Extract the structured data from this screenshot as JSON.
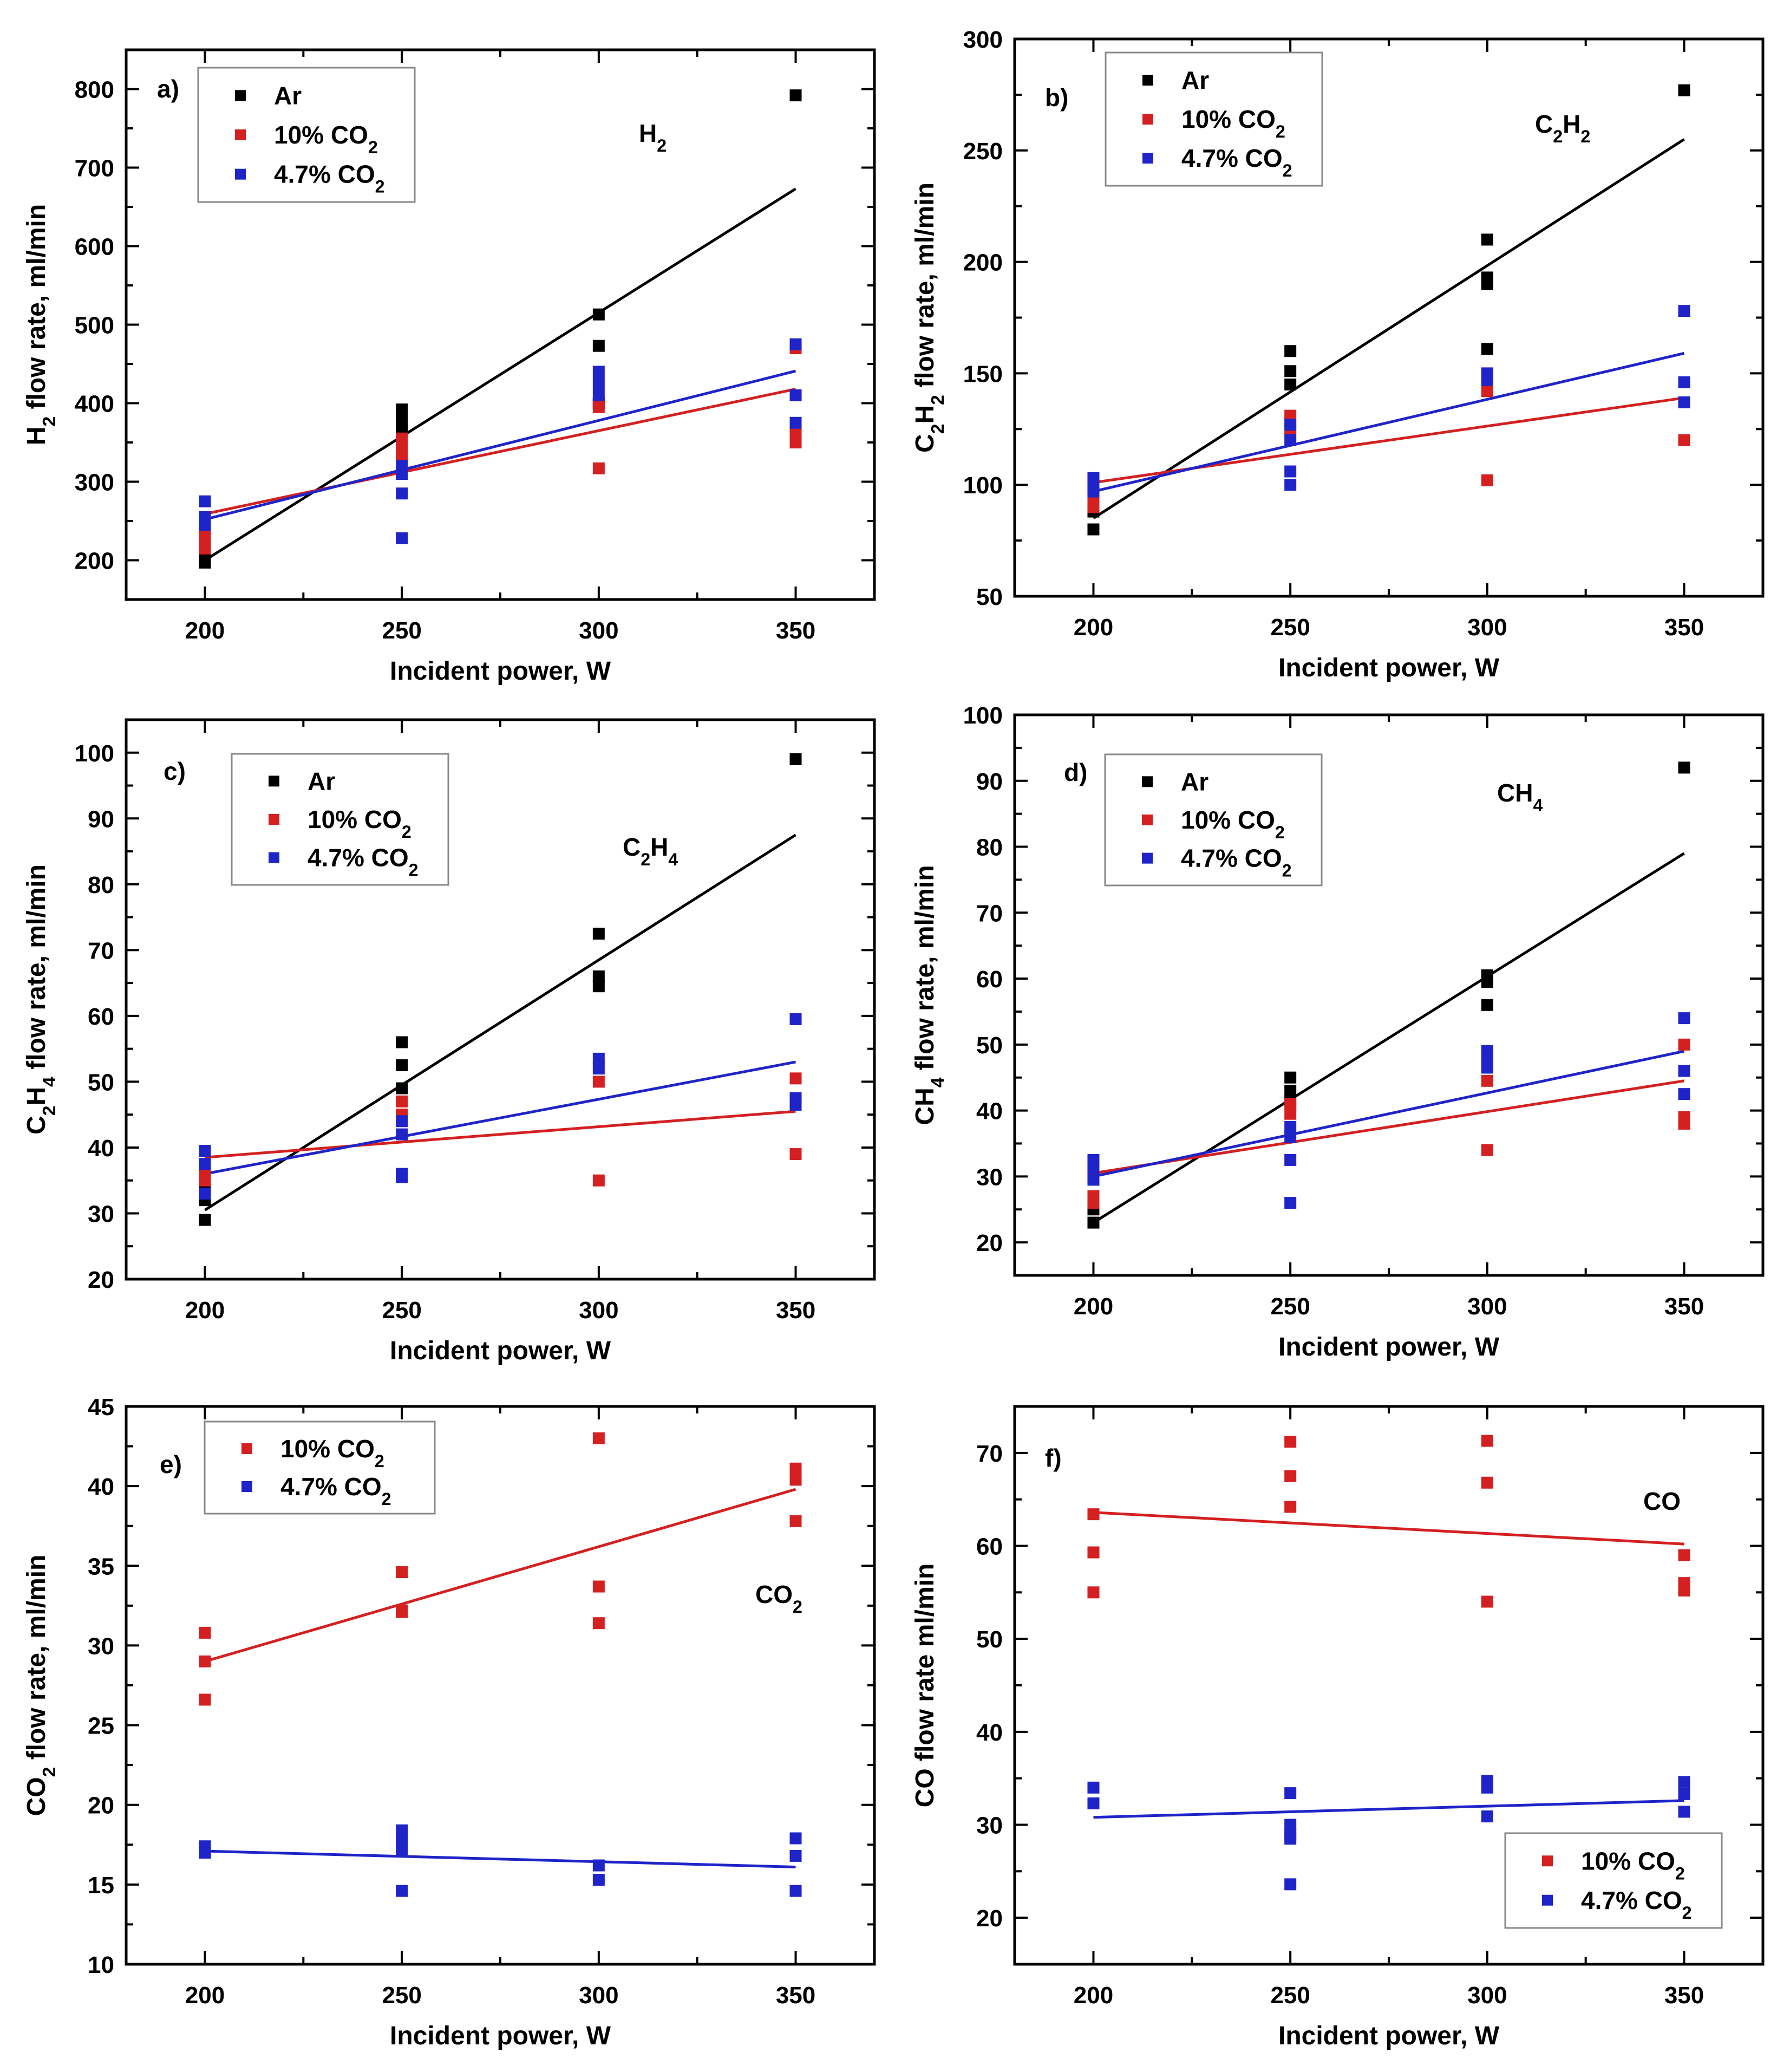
{
  "figure": {
    "colors": {
      "Ar": "#000000",
      "10% CO2": "#d42020",
      "4.7% CO2": "#1f24c8"
    },
    "series_labels": {
      "Ar": [
        "Ar"
      ],
      "10% CO2": [
        "10% CO",
        "2"
      ],
      "4.7% CO2": [
        "4.7% CO",
        "2"
      ]
    }
  },
  "chart_data": [
    {
      "type": "scatter",
      "panel": "a)",
      "species_label": [
        "H",
        "2"
      ],
      "xlabel": "Incident power, W",
      "ylabel": [
        "H",
        "2",
        " flow rate, ml/min"
      ],
      "xlim": [
        180,
        370
      ],
      "ylim": [
        150,
        850
      ],
      "xticks": [
        200,
        250,
        300,
        350
      ],
      "yticks": [
        200,
        300,
        400,
        500,
        600,
        700,
        800
      ],
      "legend": "top-left",
      "series": [
        {
          "name": "Ar",
          "points": [
            [
              200,
              197
            ],
            [
              200,
              200
            ],
            [
              250,
              392
            ],
            [
              250,
              380
            ],
            [
              250,
              370
            ],
            [
              250,
              360
            ],
            [
              300,
              513
            ],
            [
              300,
              473
            ],
            [
              300,
              400
            ],
            [
              350,
              792
            ]
          ],
          "fit": [
            [
              200,
              200
            ],
            [
              350,
              673
            ]
          ]
        },
        {
          "name": "10% CO2",
          "points": [
            [
              200,
              215
            ],
            [
              200,
              225
            ],
            [
              200,
              232
            ],
            [
              250,
              355
            ],
            [
              250,
              340
            ],
            [
              250,
              330
            ],
            [
              300,
              400
            ],
            [
              300,
              395
            ],
            [
              300,
              317
            ],
            [
              350,
              470
            ],
            [
              350,
              360
            ],
            [
              350,
              350
            ]
          ],
          "fit": [
            [
              200,
              259
            ],
            [
              350,
              418
            ]
          ]
        },
        {
          "name": "4.7% CO2",
          "points": [
            [
              200,
              275
            ],
            [
              200,
              255
            ],
            [
              200,
              245
            ],
            [
              250,
              320
            ],
            [
              250,
              310
            ],
            [
              250,
              285
            ],
            [
              250,
              228
            ],
            [
              300,
              440
            ],
            [
              300,
              425
            ],
            [
              300,
              410
            ],
            [
              350,
              475
            ],
            [
              350,
              410
            ],
            [
              350,
              375
            ]
          ],
          "fit": [
            [
              200,
              252
            ],
            [
              350,
              441
            ]
          ]
        }
      ]
    },
    {
      "type": "scatter",
      "panel": "b)",
      "species_label": [
        "C",
        "2",
        "H",
        "2"
      ],
      "xlabel": "Incident power, W",
      "ylabel": [
        "C",
        "2",
        "H",
        "2",
        " flow rate, ml/min"
      ],
      "xlim": [
        180,
        370
      ],
      "ylim": [
        50,
        300
      ],
      "xticks": [
        200,
        250,
        300,
        350
      ],
      "yticks": [
        50,
        100,
        150,
        200,
        250,
        300
      ],
      "legend": "top-left",
      "series": [
        {
          "name": "Ar",
          "points": [
            [
              200,
              80
            ],
            [
              200,
              88
            ],
            [
              250,
              160
            ],
            [
              250,
              151
            ],
            [
              250,
              145
            ],
            [
              300,
              210
            ],
            [
              300,
              193
            ],
            [
              300,
              190
            ],
            [
              300,
              161
            ],
            [
              350,
              277
            ]
          ],
          "fit": [
            [
              200,
              85
            ],
            [
              350,
              255
            ]
          ]
        },
        {
          "name": "10% CO2",
          "points": [
            [
              200,
              90
            ],
            [
              200,
              95
            ],
            [
              250,
              131
            ],
            [
              250,
              125
            ],
            [
              300,
              142
            ],
            [
              300,
              102
            ],
            [
              350,
              120
            ]
          ],
          "fit": [
            [
              200,
              101
            ],
            [
              350,
              139
            ]
          ]
        },
        {
          "name": "4.7% CO2",
          "points": [
            [
              200,
              103
            ],
            [
              200,
              100
            ],
            [
              200,
              97
            ],
            [
              250,
              127
            ],
            [
              250,
              120
            ],
            [
              250,
              106
            ],
            [
              250,
              100
            ],
            [
              300,
              150
            ],
            [
              300,
              147
            ],
            [
              350,
              178
            ],
            [
              350,
              146
            ],
            [
              350,
              137
            ]
          ],
          "fit": [
            [
              200,
              97
            ],
            [
              350,
              159
            ]
          ]
        }
      ]
    },
    {
      "type": "scatter",
      "panel": "c)",
      "species_label": [
        "C",
        "2",
        "H",
        "4"
      ],
      "xlabel": "Incident power, W",
      "ylabel": [
        "C",
        "2",
        "H",
        "4",
        " flow rate, ml/min"
      ],
      "xlim": [
        180,
        370
      ],
      "ylim": [
        20,
        105
      ],
      "xticks": [
        200,
        250,
        300,
        350
      ],
      "yticks": [
        20,
        30,
        40,
        50,
        60,
        70,
        80,
        90,
        100
      ],
      "legend": "top-left",
      "series": [
        {
          "name": "Ar",
          "points": [
            [
              200,
              29
            ],
            [
              200,
              32
            ],
            [
              200,
              34
            ],
            [
              250,
              56
            ],
            [
              250,
              52.5
            ],
            [
              250,
              49
            ],
            [
              300,
              72.5
            ],
            [
              300,
              66
            ],
            [
              300,
              64.5
            ],
            [
              350,
              99
            ]
          ],
          "fit": [
            [
              200,
              30.5
            ],
            [
              350,
              87.5
            ]
          ]
        },
        {
          "name": "10% CO2",
          "points": [
            [
              200,
              35
            ],
            [
              200,
              36.5
            ],
            [
              250,
              47
            ],
            [
              250,
              45
            ],
            [
              300,
              50
            ],
            [
              300,
              35
            ],
            [
              350,
              50.5
            ],
            [
              350,
              39
            ]
          ],
          "fit": [
            [
              200,
              38.5
            ],
            [
              350,
              45.5
            ]
          ]
        },
        {
          "name": "4.7% CO2",
          "points": [
            [
              200,
              39.5
            ],
            [
              200,
              37.5
            ],
            [
              200,
              33
            ],
            [
              250,
              44
            ],
            [
              250,
              42
            ],
            [
              250,
              36
            ],
            [
              250,
              35.5
            ],
            [
              300,
              53.5
            ],
            [
              300,
              52
            ],
            [
              350,
              59.5
            ],
            [
              350,
              47.5
            ],
            [
              350,
              46.5
            ]
          ],
          "fit": [
            [
              200,
              36
            ],
            [
              350,
              53
            ]
          ]
        }
      ]
    },
    {
      "type": "scatter",
      "panel": "d)",
      "species_label": [
        "CH",
        "4"
      ],
      "xlabel": "Incident power, W",
      "ylabel": [
        "CH",
        "4",
        " flow rate, ml/min"
      ],
      "xlim": [
        180,
        370
      ],
      "ylim": [
        15,
        100
      ],
      "xticks": [
        200,
        250,
        300,
        350
      ],
      "yticks": [
        20,
        30,
        40,
        50,
        60,
        70,
        80,
        90,
        100
      ],
      "legend": "top-left",
      "series": [
        {
          "name": "Ar",
          "points": [
            [
              200,
              23
            ],
            [
              200,
              25
            ],
            [
              250,
              45
            ],
            [
              250,
              43
            ],
            [
              250,
              41.5
            ],
            [
              300,
              60.5
            ],
            [
              300,
              59.5
            ],
            [
              300,
              56
            ],
            [
              350,
              92
            ]
          ],
          "fit": [
            [
              200,
              23
            ],
            [
              350,
              79
            ]
          ]
        },
        {
          "name": "10% CO2",
          "points": [
            [
              200,
              27
            ],
            [
              200,
              26
            ],
            [
              250,
              41
            ],
            [
              250,
              39.5
            ],
            [
              300,
              44.5
            ],
            [
              300,
              34
            ],
            [
              350,
              50
            ],
            [
              350,
              39
            ],
            [
              350,
              38
            ]
          ],
          "fit": [
            [
              200,
              30.5
            ],
            [
              350,
              44.5
            ]
          ]
        },
        {
          "name": "4.7% CO2",
          "points": [
            [
              200,
              32.5
            ],
            [
              200,
              31
            ],
            [
              200,
              29.5
            ],
            [
              250,
              37.5
            ],
            [
              250,
              36
            ],
            [
              250,
              32.5
            ],
            [
              250,
              26
            ],
            [
              300,
              49
            ],
            [
              300,
              47.5
            ],
            [
              300,
              46.5
            ],
            [
              350,
              54
            ],
            [
              350,
              46
            ],
            [
              350,
              42.5
            ]
          ],
          "fit": [
            [
              200,
              30
            ],
            [
              350,
              49
            ]
          ]
        }
      ]
    },
    {
      "type": "scatter",
      "panel": "e)",
      "species_label": [
        "CO",
        "2"
      ],
      "xlabel": "Incident power, W",
      "ylabel": [
        "CO",
        "2",
        " flow rate, ml/min"
      ],
      "xlim": [
        180,
        370
      ],
      "ylim": [
        10,
        45
      ],
      "xticks": [
        200,
        250,
        300,
        350
      ],
      "yticks": [
        10,
        15,
        20,
        25,
        30,
        35,
        40,
        45
      ],
      "legend": "top-left",
      "series": [
        {
          "name": "10% CO2",
          "points": [
            [
              200,
              30.8
            ],
            [
              200,
              29
            ],
            [
              200,
              26.6
            ],
            [
              250,
              34.6
            ],
            [
              250,
              32.2
            ],
            [
              250,
              32.1
            ],
            [
              300,
              43
            ],
            [
              300,
              33.7
            ],
            [
              300,
              31.4
            ],
            [
              350,
              41.1
            ],
            [
              350,
              40.4
            ],
            [
              350,
              37.8
            ]
          ],
          "fit": [
            [
              200,
              29
            ],
            [
              350,
              39.8
            ]
          ]
        },
        {
          "name": "4.7% CO2",
          "points": [
            [
              200,
              17.4
            ],
            [
              200,
              17
            ],
            [
              250,
              18.4
            ],
            [
              250,
              17.8
            ],
            [
              250,
              17.2
            ],
            [
              250,
              14.6
            ],
            [
              300,
              16.2
            ],
            [
              300,
              15.3
            ],
            [
              350,
              17.9
            ],
            [
              350,
              16.8
            ],
            [
              350,
              14.6
            ]
          ],
          "fit": [
            [
              200,
              17.1
            ],
            [
              350,
              16.1
            ]
          ]
        }
      ]
    },
    {
      "type": "scatter",
      "panel": "f)",
      "species_label": [
        "CO"
      ],
      "xlabel": "Incident power, W",
      "ylabel": [
        "CO flow rate ml/min"
      ],
      "xlim": [
        180,
        370
      ],
      "ylim": [
        15,
        75
      ],
      "xticks": [
        200,
        250,
        300,
        350
      ],
      "yticks": [
        20,
        30,
        40,
        50,
        60,
        70
      ],
      "legend": "bottom-right",
      "series": [
        {
          "name": "10% CO2",
          "points": [
            [
              200,
              63.4
            ],
            [
              200,
              59.3
            ],
            [
              200,
              55
            ],
            [
              250,
              71.2
            ],
            [
              250,
              67.5
            ],
            [
              250,
              64.2
            ],
            [
              300,
              71.3
            ],
            [
              300,
              66.8
            ],
            [
              300,
              54
            ],
            [
              350,
              59
            ],
            [
              350,
              56
            ],
            [
              350,
              55.2
            ]
          ],
          "fit": [
            [
              200,
              63.6
            ],
            [
              350,
              60.2
            ]
          ]
        },
        {
          "name": "4.7% CO2",
          "points": [
            [
              200,
              34
            ],
            [
              200,
              32.3
            ],
            [
              250,
              33.4
            ],
            [
              250,
              30
            ],
            [
              250,
              29
            ],
            [
              250,
              28.5
            ],
            [
              250,
              23.6
            ],
            [
              300,
              34.7
            ],
            [
              300,
              34
            ],
            [
              300,
              30.9
            ],
            [
              350,
              34.6
            ],
            [
              350,
              33.3
            ],
            [
              350,
              31.4
            ]
          ],
          "fit": [
            [
              200,
              30.8
            ],
            [
              350,
              32.6
            ]
          ]
        }
      ]
    }
  ]
}
